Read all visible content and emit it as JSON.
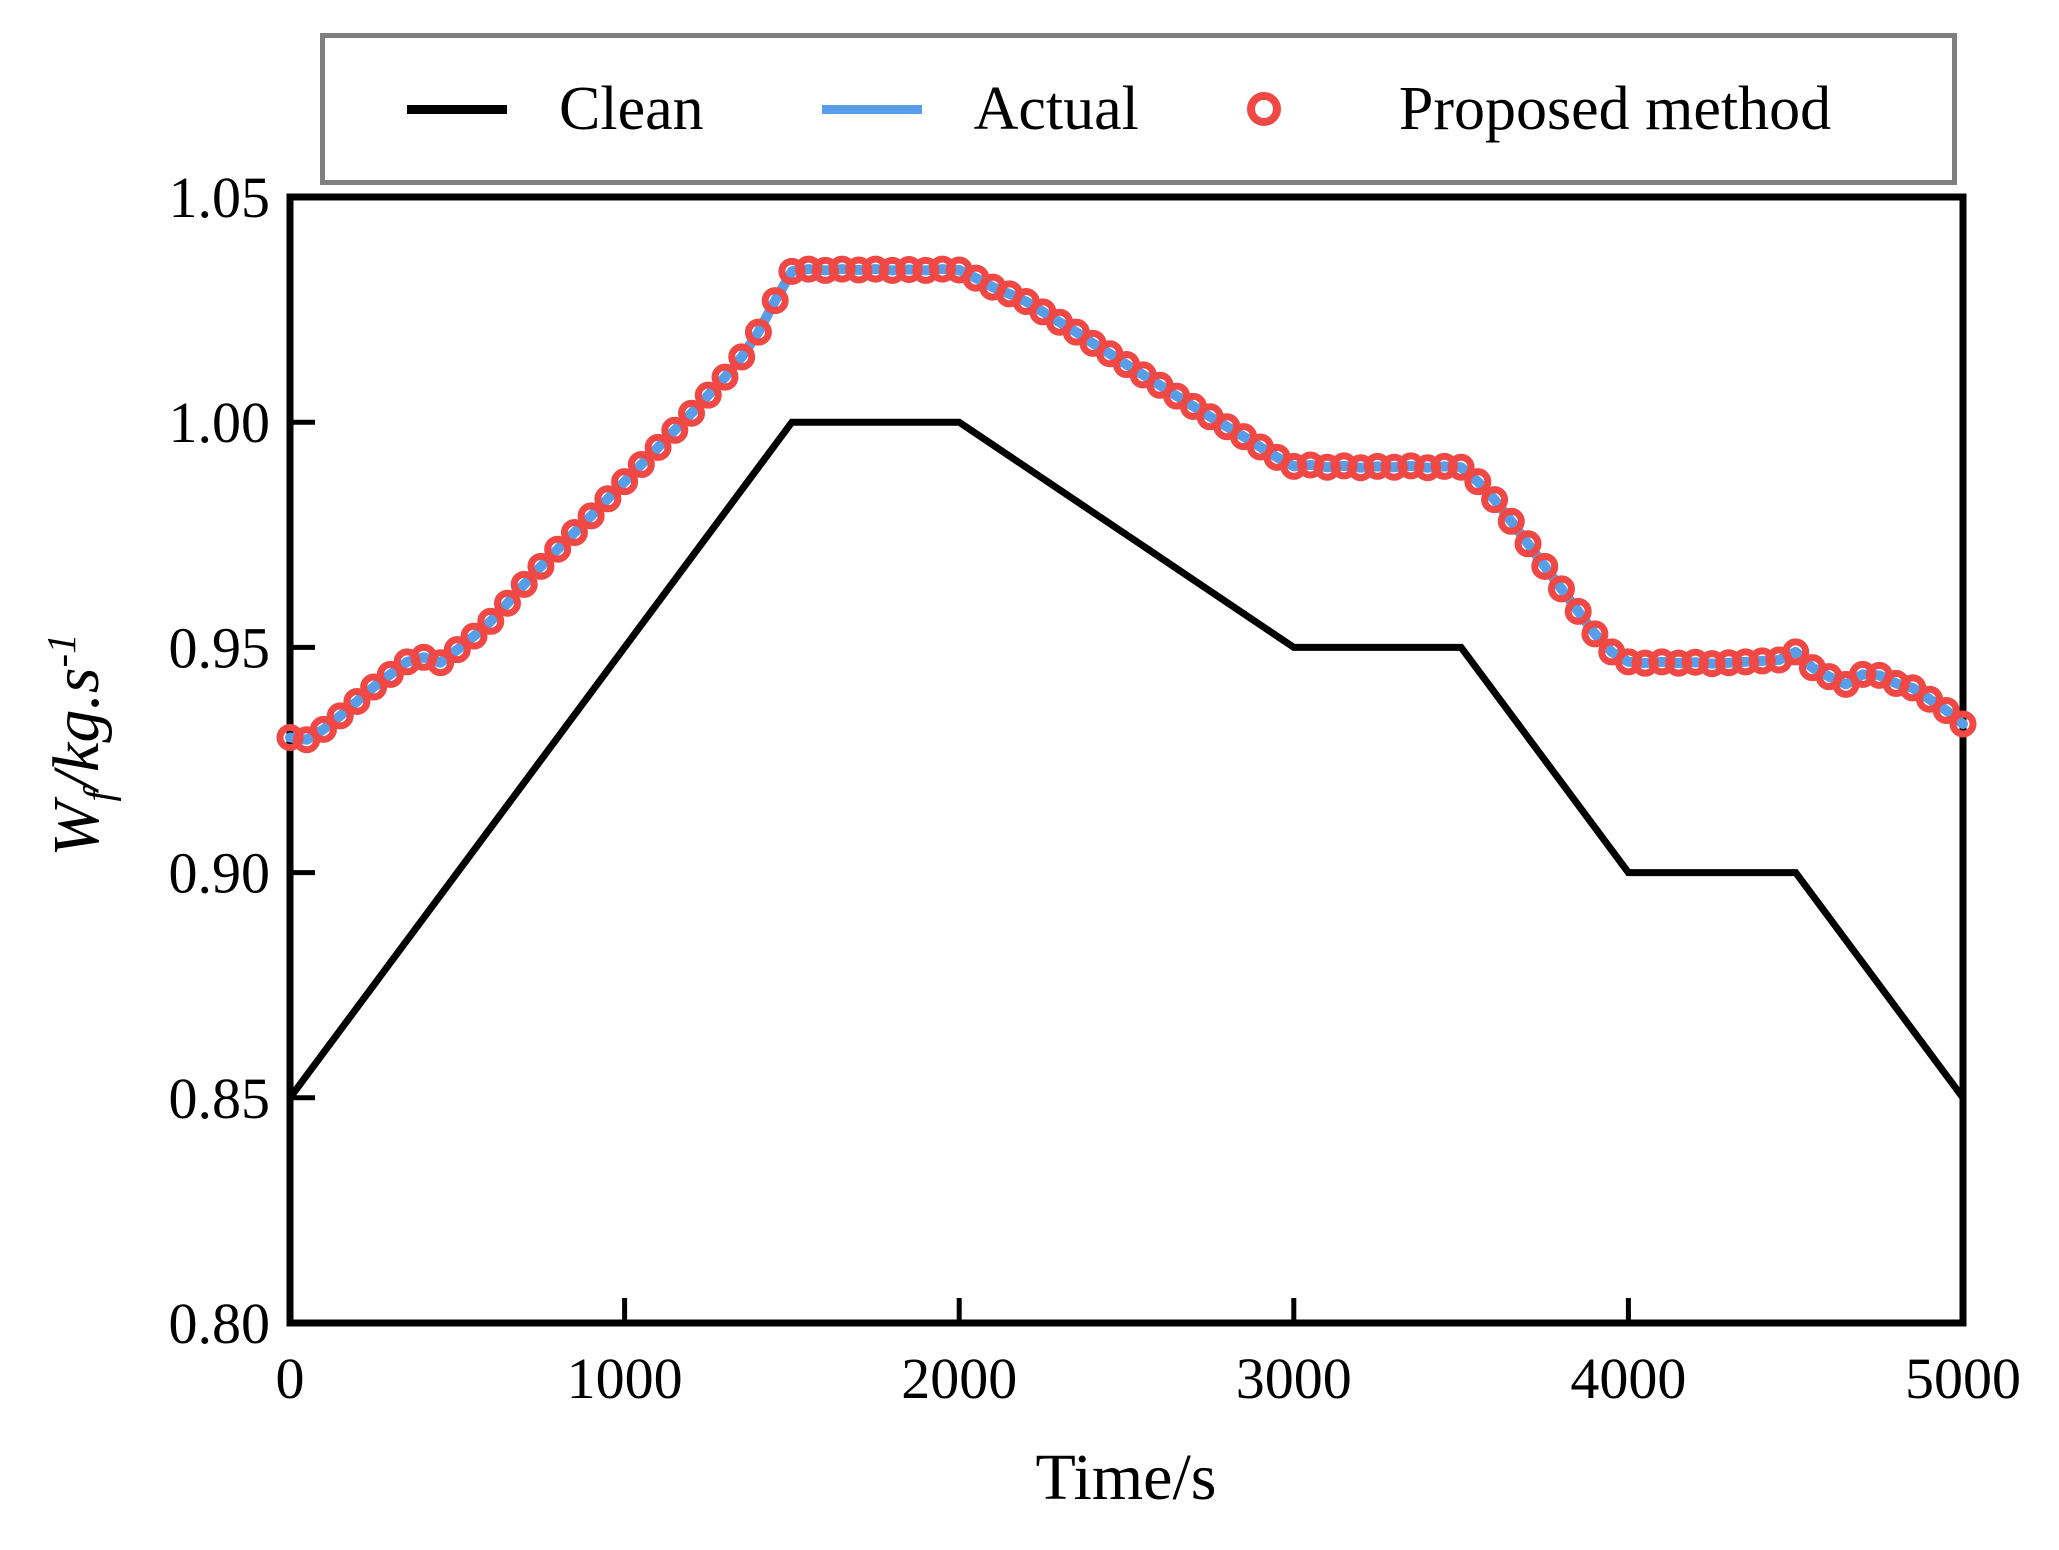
{
  "figure": {
    "x_axis_label": "Time/s",
    "y_axis_label": {
      "base": "W",
      "sub": "f",
      "rest": "/kg.s",
      "sup": "-1"
    },
    "background": "#ffffff",
    "frame_color": "#000000",
    "legend_border_color": "#7f7f7f"
  },
  "legend": {
    "position": "top",
    "items": [
      {
        "label": "Clean",
        "color": "#000000",
        "marker": "line"
      },
      {
        "label": "Actual",
        "color": "#579DE8",
        "marker": "line"
      },
      {
        "label": "Proposed method",
        "color": "#F04844",
        "marker": "open-circle"
      }
    ]
  },
  "chart_data": {
    "type": "line",
    "title": "",
    "xlabel": "Time/s",
    "ylabel": "Wf/kg.s^-1",
    "xlim": [
      0,
      5000
    ],
    "ylim": [
      0.8,
      1.05
    ],
    "x_ticks": [
      0,
      1000,
      2000,
      3000,
      4000,
      5000
    ],
    "x_tick_labels": [
      "0",
      "1000",
      "2000",
      "3000",
      "4000",
      "5000"
    ],
    "y_ticks": [
      0.8,
      0.85,
      0.9,
      0.95,
      1.0,
      1.05
    ],
    "y_tick_labels": [
      "0.80",
      "0.85",
      "0.90",
      "0.95",
      "1.00",
      "1.05"
    ],
    "grid": false,
    "legend_position": "top",
    "series": [
      {
        "name": "Clean",
        "type": "line",
        "color": "#000000",
        "line_width": 7,
        "points": [
          [
            0,
            0.85
          ],
          [
            1500,
            1.0
          ],
          [
            2000,
            1.0
          ],
          [
            3000,
            0.95
          ],
          [
            3500,
            0.95
          ],
          [
            4000,
            0.9
          ],
          [
            4500,
            0.9
          ],
          [
            5000,
            0.85
          ]
        ]
      },
      {
        "name": "Actual",
        "type": "line",
        "color": "#579DE8",
        "line_width": 10,
        "x_start": 0,
        "x_step": 50,
        "values": [
          0.93,
          0.9295,
          0.9318,
          0.9348,
          0.938,
          0.9412,
          0.944,
          0.9468,
          0.9478,
          0.9466,
          0.9495,
          0.9525,
          0.9558,
          0.9598,
          0.964,
          0.968,
          0.9718,
          0.9755,
          0.9792,
          0.983,
          0.9868,
          0.9906,
          0.9944,
          0.9982,
          1.002,
          1.006,
          1.01,
          1.0145,
          1.02,
          1.027,
          1.0335,
          1.034,
          1.0337,
          1.034,
          1.0338,
          1.034,
          1.0337,
          1.0339,
          1.0337,
          1.034,
          1.0338,
          1.032,
          1.03,
          1.0285,
          1.0268,
          1.0245,
          1.0222,
          1.02,
          1.0175,
          1.0152,
          1.0128,
          1.0105,
          1.0082,
          1.0058,
          1.0035,
          1.0012,
          0.999,
          0.9968,
          0.9945,
          0.9922,
          0.9902,
          0.9905,
          0.99,
          0.9903,
          0.9899,
          0.9902,
          0.99,
          0.9903,
          0.9899,
          0.9902,
          0.99,
          0.9868,
          0.9828,
          0.978,
          0.973,
          0.968,
          0.963,
          0.958,
          0.953,
          0.949,
          0.9468,
          0.9465,
          0.9468,
          0.9465,
          0.9467,
          0.9464,
          0.9466,
          0.9468,
          0.947,
          0.9472,
          0.949,
          0.9455,
          0.9435,
          0.9418,
          0.944,
          0.9438,
          0.942,
          0.941,
          0.9385,
          0.936,
          0.933
        ]
      },
      {
        "name": "Proposed method",
        "type": "scatter-open-circle",
        "color": "#F04844",
        "marker_radius": 10,
        "marker_stroke": 7,
        "x_start": 0,
        "x_step": 50,
        "values": [
          0.93,
          0.9295,
          0.9318,
          0.9348,
          0.938,
          0.9412,
          0.944,
          0.9468,
          0.9478,
          0.9466,
          0.9495,
          0.9525,
          0.9558,
          0.9598,
          0.964,
          0.968,
          0.9718,
          0.9755,
          0.9792,
          0.983,
          0.9868,
          0.9906,
          0.9944,
          0.9982,
          1.002,
          1.006,
          1.01,
          1.0145,
          1.02,
          1.027,
          1.0335,
          1.034,
          1.0337,
          1.034,
          1.0338,
          1.034,
          1.0337,
          1.0339,
          1.0337,
          1.034,
          1.0338,
          1.032,
          1.03,
          1.0285,
          1.0268,
          1.0245,
          1.0222,
          1.02,
          1.0175,
          1.0152,
          1.0128,
          1.0105,
          1.0082,
          1.0058,
          1.0035,
          1.0012,
          0.999,
          0.9968,
          0.9945,
          0.9922,
          0.9902,
          0.9905,
          0.99,
          0.9903,
          0.9899,
          0.9902,
          0.99,
          0.9903,
          0.9899,
          0.9902,
          0.99,
          0.9868,
          0.9828,
          0.978,
          0.973,
          0.968,
          0.963,
          0.958,
          0.953,
          0.949,
          0.9468,
          0.9465,
          0.9468,
          0.9465,
          0.9467,
          0.9464,
          0.9466,
          0.9468,
          0.947,
          0.9472,
          0.949,
          0.9455,
          0.9435,
          0.9418,
          0.944,
          0.9438,
          0.942,
          0.941,
          0.9385,
          0.936,
          0.933
        ]
      }
    ]
  }
}
